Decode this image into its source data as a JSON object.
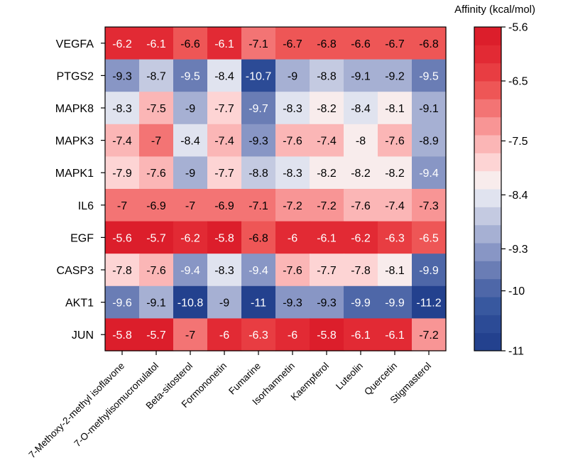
{
  "chart_data": {
    "type": "heatmap",
    "title": "",
    "xlabel": "",
    "ylabel": "",
    "rows": [
      "VEGFA",
      "PTGS2",
      "MAPK8",
      "MAPK3",
      "MAPK1",
      "IL6",
      "EGF",
      "CASP3",
      "AKT1",
      "JUN"
    ],
    "columns": [
      "7-Methoxy-2-methyl isoflavone",
      "7-O-methylisomucronulatol",
      "Beta-sitosterol",
      "Formononetin",
      "Fumarine",
      "Isorhamnetin",
      "Kaempferol",
      "Luteolin",
      "Quercetin",
      "Stigmasterol"
    ],
    "values": [
      [
        -6.2,
        -6.1,
        -6.6,
        -6.1,
        -7.1,
        -6.7,
        -6.8,
        -6.6,
        -6.7,
        -6.8
      ],
      [
        -9.3,
        -8.7,
        -9.5,
        -8.4,
        -10.7,
        -9,
        -8.8,
        -9.1,
        -9.2,
        -9.5
      ],
      [
        -8.3,
        -7.5,
        -9,
        -7.7,
        -9.7,
        -8.3,
        -8.2,
        -8.4,
        -8.1,
        -9.1
      ],
      [
        -7.4,
        -7,
        -8.4,
        -7.4,
        -9.3,
        -7.6,
        -7.4,
        -8,
        -7.6,
        -8.9
      ],
      [
        -7.9,
        -7.6,
        -9,
        -7.7,
        -8.8,
        -8.3,
        -8.2,
        -8.2,
        -8.2,
        -9.4
      ],
      [
        -7,
        -6.9,
        -7,
        -6.9,
        -7.1,
        -7.2,
        -7.2,
        -7.6,
        -7.4,
        -7.3
      ],
      [
        -5.6,
        -5.7,
        -6.2,
        -5.8,
        -6.8,
        -6,
        -6.1,
        -6.2,
        -6.3,
        -6.5
      ],
      [
        -7.8,
        -7.6,
        -9.4,
        -8.3,
        -9.4,
        -7.6,
        -7.7,
        -7.8,
        -8.1,
        -9.9
      ],
      [
        -9.6,
        -9.1,
        -10.8,
        -9,
        -11,
        -9.3,
        -9.3,
        -9.9,
        -9.9,
        -11.2
      ],
      [
        -5.8,
        -5.7,
        -7,
        -6,
        -6.3,
        -6,
        -5.8,
        -6.1,
        -6.1,
        -7.2
      ]
    ],
    "colorbar": {
      "title": "Affinity (kcal/mol)",
      "min": -11,
      "max": -5.6,
      "ticks": [
        -5.6,
        -6.5,
        -7.5,
        -8.4,
        -9.3,
        -10,
        -11
      ],
      "tick_labels": [
        "-5.6",
        "-6.5",
        "-7.5",
        "-8.4",
        "-9.3",
        "-10",
        "-11"
      ],
      "colors_low_to_high": [
        "#23418e",
        "#2c4b96",
        "#38589f",
        "#4e67a8",
        "#6a7db5",
        "#8896c5",
        "#a6b0d3",
        "#c4cae1",
        "#e0e3ef",
        "#f8ecec",
        "#fdd4d4",
        "#fbb6b6",
        "#f89595",
        "#f37474",
        "#ee5656",
        "#e83d42",
        "#e22a34",
        "#dc1e2b"
      ]
    }
  }
}
